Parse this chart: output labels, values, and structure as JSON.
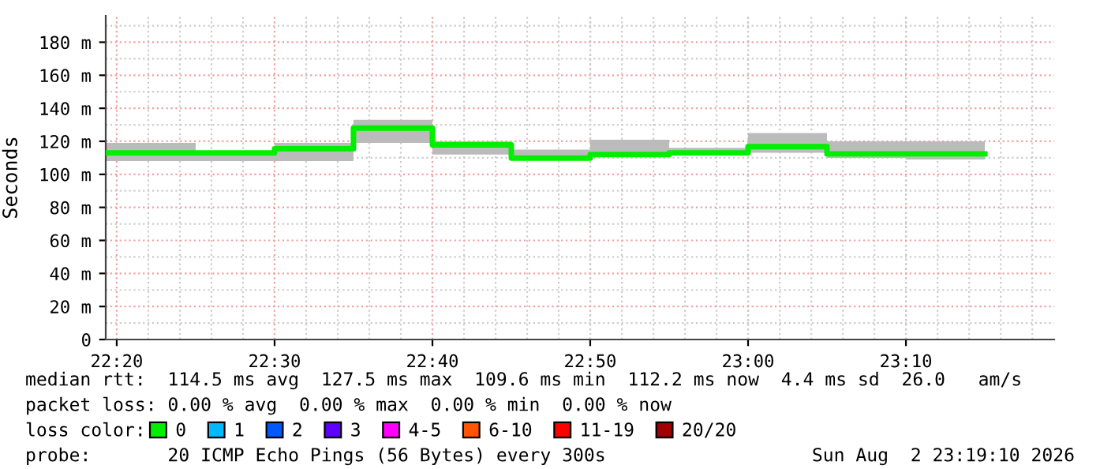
{
  "chart_data": {
    "type": "step",
    "ylabel": "Seconds",
    "legend_title": "loss color:",
    "x": [
      22.3217,
      22.4167,
      22.5,
      22.5833,
      22.6667,
      22.75,
      22.8333,
      22.9167,
      23.0,
      23.0833,
      23.1667,
      23.25
    ],
    "series": [
      {
        "name": "0",
        "color": "#00ee00",
        "values": [
          113,
          113,
          115.5,
          128,
          117.8,
          109.8,
          112,
          113,
          116.8,
          112.4,
          112.4,
          112.4
        ],
        "lower": [
          108,
          108,
          108,
          119,
          112,
          109,
          111,
          112,
          113,
          110,
          109,
          109
        ],
        "upper": [
          119,
          113,
          119,
          133,
          120,
          115,
          121,
          116,
          125,
          120,
          120,
          120
        ]
      },
      {
        "name": "1",
        "color": "#00b8ff",
        "values": [
          null,
          null,
          null,
          null,
          null,
          null,
          null,
          null,
          null,
          null,
          null,
          null
        ]
      },
      {
        "name": "2",
        "color": "#0059ff",
        "values": [
          null,
          null,
          null,
          null,
          null,
          null,
          null,
          null,
          null,
          null,
          null,
          null
        ]
      },
      {
        "name": "3",
        "color": "#5e00ff",
        "values": [
          null,
          null,
          null,
          null,
          null,
          null,
          null,
          null,
          null,
          null,
          null,
          null
        ]
      },
      {
        "name": "4-5",
        "color": "#ff00ff",
        "values": [
          null,
          null,
          null,
          null,
          null,
          null,
          null,
          null,
          null,
          null,
          null,
          null
        ]
      },
      {
        "name": "6-10",
        "color": "#ff5500",
        "values": [
          null,
          null,
          null,
          null,
          null,
          null,
          null,
          null,
          null,
          null,
          null,
          null
        ]
      },
      {
        "name": "11-19",
        "color": "#ff0000",
        "values": [
          null,
          null,
          null,
          null,
          null,
          null,
          null,
          null,
          null,
          null,
          null,
          null
        ]
      },
      {
        "name": "20/20",
        "color": "#a10000",
        "values": [
          null,
          null,
          null,
          null,
          null,
          null,
          null,
          null,
          null,
          null,
          null,
          null
        ]
      }
    ],
    "xlim": [
      22.3217,
      23.3233
    ],
    "xticks": [
      {
        "value": 22.3333,
        "label": "22:20"
      },
      {
        "value": 22.5,
        "label": "22:30"
      },
      {
        "value": 22.6667,
        "label": "22:40"
      },
      {
        "value": 22.8333,
        "label": "22:50"
      },
      {
        "value": 23.0,
        "label": "23:00"
      },
      {
        "value": 23.1667,
        "label": "23:10"
      }
    ],
    "ylim": [
      0,
      196
    ],
    "yticks": [
      0,
      {
        "value": 20,
        "label": "20 m"
      },
      {
        "value": 40,
        "label": "40 m"
      },
      {
        "value": 60,
        "label": "60 m"
      },
      {
        "value": 80,
        "label": "80 m"
      },
      {
        "value": 100,
        "label": "100 m"
      },
      {
        "value": 120,
        "label": "120 m"
      },
      {
        "value": 140,
        "label": "140 m"
      },
      {
        "value": 160,
        "label": "160 m"
      },
      {
        "value": 180,
        "label": "180 m"
      }
    ],
    "grid": true,
    "legend": "bottom",
    "annotations": [
      "median rtt:  114.5 ms avg  127.5 ms max  109.6 ms min  112.2 ms now  4.4 ms sd  26.0   am/s",
      "packet loss: 0.00 % avg  0.00 % max  0.00 % min  0.00 % now",
      "probe:       20 ICMP Echo Pings (56 Bytes) every 300s",
      "Sun Aug  2 23:19:10 2026"
    ]
  }
}
